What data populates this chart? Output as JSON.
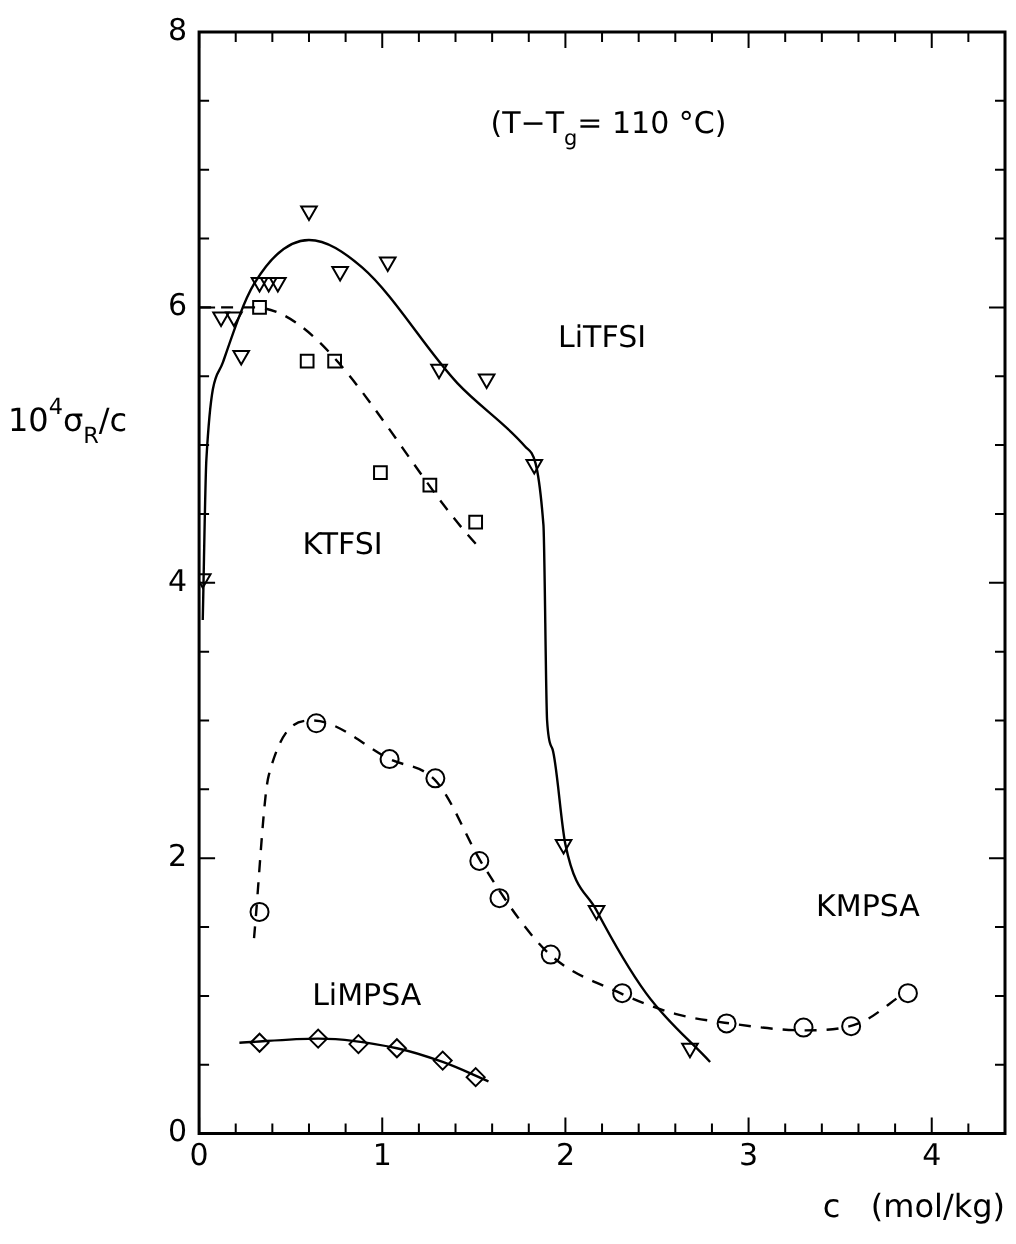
{
  "chart_data": {
    "type": "scatter",
    "xlabel": "c   (mol/kg)",
    "ylabel": "10$^{4}$σ$_{R}$/c",
    "xlim": [
      0,
      4.4
    ],
    "ylim": [
      0,
      8
    ],
    "xticks": [
      0,
      {
        "value": 0.2,
        "label": null
      },
      {
        "value": 0.4,
        "label": null
      },
      {
        "value": 0.6,
        "label": null
      },
      {
        "value": 0.8,
        "label": null
      },
      1,
      {
        "value": 1.2,
        "label": null
      },
      {
        "value": 1.4,
        "label": null
      },
      {
        "value": 1.6,
        "label": null
      },
      {
        "value": 1.8,
        "label": null
      },
      2,
      {
        "value": 2.2,
        "label": null
      },
      {
        "value": 2.4,
        "label": null
      },
      {
        "value": 2.6,
        "label": null
      },
      {
        "value": 2.8,
        "label": null
      },
      3,
      {
        "value": 3.2,
        "label": null
      },
      {
        "value": 3.4,
        "label": null
      },
      {
        "value": 3.6,
        "label": null
      },
      {
        "value": 3.8,
        "label": null
      },
      4,
      {
        "value": 4.2,
        "label": null
      }
    ],
    "yticks": [
      0,
      {
        "value": 0.5,
        "label": null
      },
      {
        "value": 1,
        "label": null
      },
      {
        "value": 1.5,
        "label": null
      },
      2,
      {
        "value": 2.5,
        "label": null
      },
      {
        "value": 3,
        "label": null
      },
      {
        "value": 3.5,
        "label": null
      },
      4,
      {
        "value": 4.5,
        "label": null
      },
      {
        "value": 5,
        "label": null
      },
      {
        "value": 5.5,
        "label": null
      },
      6,
      {
        "value": 6.5,
        "label": null
      },
      {
        "value": 7,
        "label": null
      },
      {
        "value": 7.5,
        "label": null
      },
      8
    ],
    "grid": false,
    "legend": false,
    "series": [
      {
        "marker": "triangle",
        "color": "#000000",
        "x": [
          0.02,
          0.12,
          0.19,
          0.23,
          0.33,
          0.38,
          0.43,
          0.6,
          0.77,
          1.03,
          1.31,
          1.57,
          1.83,
          1.99,
          2.17,
          2.68
        ],
        "values": [
          4.03,
          5.93,
          5.93,
          5.65,
          6.18,
          6.18,
          6.18,
          6.7,
          6.26,
          6.33,
          5.55,
          5.48,
          4.86,
          2.1,
          1.62,
          0.62
        ]
      },
      {
        "type": "line",
        "marker": "none",
        "line_style": "solid",
        "color": "#000000",
        "x": [
          0.02,
          0.04,
          0.13,
          0.3,
          0.6,
          0.89,
          1.41,
          1.78,
          1.88,
          1.9,
          1.93,
          2.0,
          2.17,
          2.44,
          2.79
        ],
        "values": [
          3.73,
          4.9,
          5.6,
          6.17,
          6.49,
          6.29,
          5.45,
          4.99,
          4.42,
          3.0,
          2.79,
          2.1,
          1.62,
          1.02,
          0.52
        ]
      },
      {
        "marker": "square",
        "color": "#000000",
        "x": [
          0.33,
          0.59,
          0.74,
          0.99,
          1.26,
          1.51
        ],
        "values": [
          6.0,
          5.61,
          5.61,
          4.8,
          4.71,
          4.44
        ]
      },
      {
        "type": "line",
        "marker": "none",
        "line_style": "dashed",
        "color": "#000000",
        "x": [
          0,
          0.3,
          1.52
        ],
        "values": [
          6.0,
          6.0,
          4.27
        ]
      },
      {
        "marker": "circle",
        "color": "#000000",
        "x": [
          0.33,
          0.64,
          1.04,
          1.29,
          1.53,
          1.64,
          1.92,
          2.31,
          2.88,
          3.3,
          3.56,
          3.87
        ],
        "values": [
          1.61,
          2.98,
          2.72,
          2.58,
          1.98,
          1.71,
          1.3,
          1.02,
          0.8,
          0.77,
          0.78,
          1.02
        ]
      },
      {
        "type": "line",
        "marker": "none",
        "line_style": "dashed",
        "color": "#000000",
        "x": [
          0.3,
          0.38,
          0.62,
          1.04,
          1.3,
          1.55,
          1.9,
          2.3,
          2.6,
          2.9,
          3.3,
          3.6,
          3.85
        ],
        "values": [
          1.42,
          2.6,
          3.0,
          2.72,
          2.55,
          1.95,
          1.32,
          1.02,
          0.87,
          0.8,
          0.75,
          0.8,
          1.02
        ]
      },
      {
        "marker": "diamond",
        "color": "#000000",
        "x": [
          0.33,
          0.65,
          0.87,
          1.08,
          1.33,
          1.51
        ],
        "values": [
          0.66,
          0.69,
          0.65,
          0.62,
          0.53,
          0.41
        ]
      },
      {
        "type": "line",
        "marker": "none",
        "line_style": "solid",
        "color": "#000000",
        "x": [
          0.22,
          0.65,
          1.08,
          1.33,
          1.58
        ],
        "values": [
          0.66,
          0.69,
          0.62,
          0.52,
          0.38
        ]
      }
    ],
    "annotations": [
      "(T−T$_{g}$= 110 °C)",
      "LiTFSI",
      "KTFSI",
      "KMPSA",
      "LiMPSA"
    ]
  }
}
